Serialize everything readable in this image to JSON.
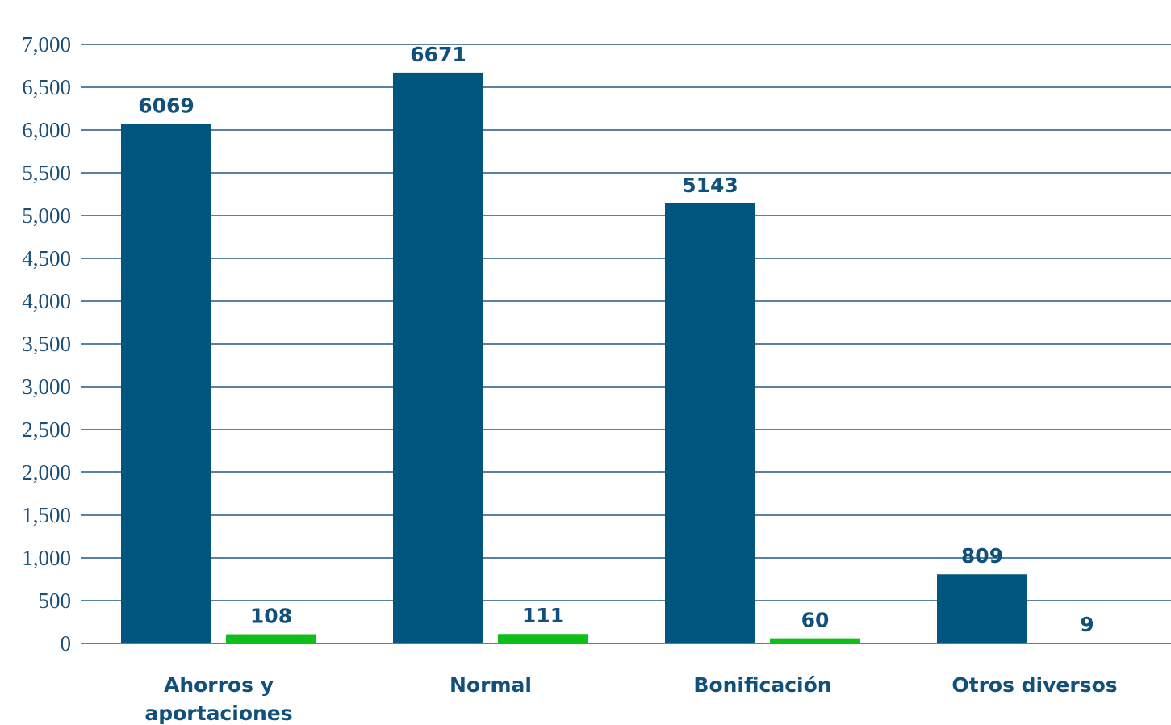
{
  "chart_data": {
    "type": "bar",
    "title": "",
    "xlabel": "",
    "ylabel": "",
    "ylim": [
      0,
      7000
    ],
    "yticks": [
      0,
      500,
      1000,
      1500,
      2000,
      2500,
      3000,
      3500,
      4000,
      4500,
      5000,
      5500,
      6000,
      6500,
      7000
    ],
    "ytick_labels": [
      "0",
      "500",
      "1,000",
      "1,500",
      "2,000",
      "2,500",
      "3,000",
      "3,500",
      "4,000",
      "4,500",
      "5,000",
      "5,500",
      "6,000",
      "6,500",
      "7,000"
    ],
    "grid": true,
    "legend": "none",
    "categories": [
      [
        "Ahorros y",
        "aportaciones"
      ],
      [
        "Normal"
      ],
      [
        "Bonificación"
      ],
      [
        "Otros diversos"
      ]
    ],
    "series": [
      {
        "values": [
          6069,
          6671,
          5143,
          809
        ],
        "labels": [
          "6069",
          "6671",
          "5143",
          "809"
        ],
        "color": "#00567f"
      },
      {
        "values": [
          108,
          111,
          60,
          9
        ],
        "labels": [
          "108",
          "111",
          "60",
          "9"
        ],
        "color": "#0fbe1a"
      }
    ]
  }
}
